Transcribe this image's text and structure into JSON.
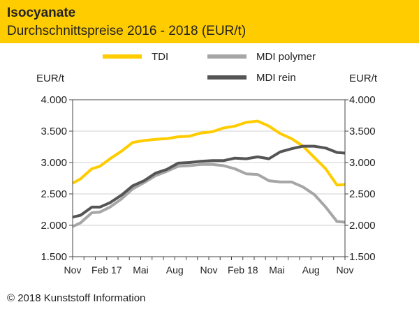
{
  "header": {
    "title": "Isocyanate",
    "subtitle": "Durchschnittspreise 2016 - 2018 (EUR/t)"
  },
  "footer": {
    "copyright": "© 2018 Kunststoff Information"
  },
  "colors": {
    "header_bg": "#FFCC00",
    "tdi": "#FFCC00",
    "mdi_polymer": "#A6A6A6",
    "mdi_rein": "#555555",
    "grid": "#D0D0D0"
  },
  "chart_data": {
    "type": "line",
    "title": "Isocyanate",
    "subtitle": "Durchschnittspreise 2016 - 2018 (EUR/t)",
    "ylabel_left": "EUR/t",
    "ylabel_right": "EUR/t",
    "ylim": [
      1500,
      4000
    ],
    "yticks": [
      1500,
      2000,
      2500,
      3000,
      3500,
      4000
    ],
    "ytick_labels": [
      "1.500",
      "2.000",
      "2.500",
      "3.000",
      "3.500",
      "4.000"
    ],
    "grid": "horizontal",
    "legend_position": "top",
    "x_labels": [
      "Nov",
      "Feb 17",
      "Mai",
      "Aug",
      "Nov",
      "Feb 18",
      "Mai",
      "Aug",
      "Nov"
    ],
    "x_label_positions": [
      0,
      3,
      6,
      9,
      12,
      15,
      18,
      21,
      24
    ],
    "x": [
      0,
      0.7,
      1.7,
      2.4,
      3.3,
      4.3,
      5.3,
      6.3,
      7.3,
      8.3,
      9.3,
      10.3,
      11.3,
      12.3,
      13.3,
      14.3,
      15.3,
      16.3,
      17.3,
      18.3,
      19.3,
      20.3,
      21.3,
      22.3,
      23.3,
      24.0
    ],
    "series": [
      {
        "name": "TDI",
        "color": "#FFCC00",
        "values": [
          2670,
          2740,
          2900,
          2940,
          3060,
          3180,
          3320,
          3350,
          3370,
          3380,
          3410,
          3420,
          3470,
          3490,
          3550,
          3580,
          3640,
          3660,
          3580,
          3460,
          3380,
          3260,
          3080,
          2900,
          2640,
          2650
        ]
      },
      {
        "name": "MDI polymer",
        "color": "#A6A6A6",
        "values": [
          1980,
          2040,
          2200,
          2210,
          2290,
          2420,
          2580,
          2680,
          2790,
          2860,
          2940,
          2950,
          2970,
          2970,
          2950,
          2900,
          2820,
          2810,
          2710,
          2690,
          2690,
          2610,
          2490,
          2290,
          2060,
          2050
        ]
      },
      {
        "name": "MDI rein",
        "color": "#555555",
        "values": [
          2130,
          2160,
          2290,
          2290,
          2360,
          2480,
          2630,
          2710,
          2830,
          2890,
          2990,
          3000,
          3020,
          3030,
          3030,
          3070,
          3060,
          3090,
          3060,
          3170,
          3220,
          3260,
          3260,
          3230,
          3160,
          3150
        ]
      }
    ]
  }
}
